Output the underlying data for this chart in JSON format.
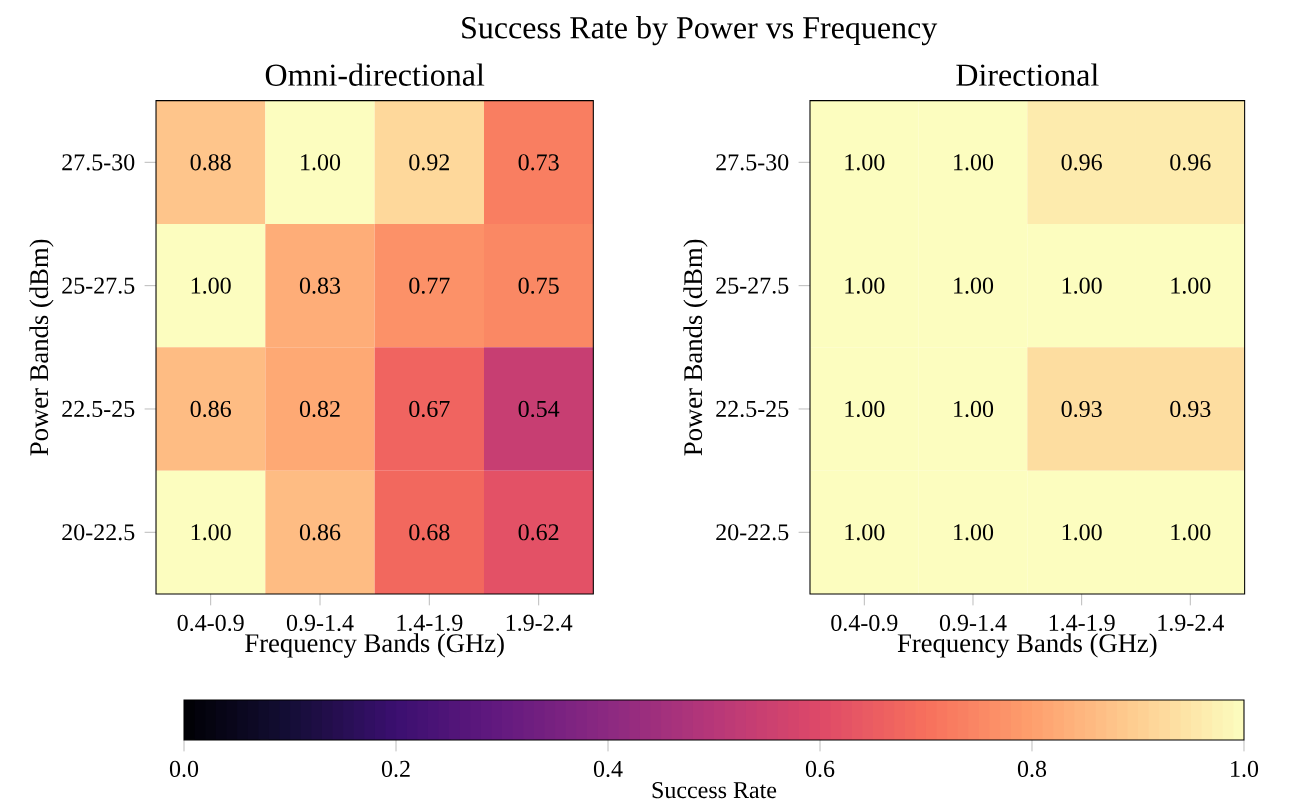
{
  "chart_data": [
    {
      "type": "heatmap",
      "title": "Omni-directional",
      "annotations": [
        "Success Rate by Power vs Frequency"
      ],
      "xlabel": "Frequency Bands (GHz)",
      "ylabel": "Power Bands (dBm)",
      "categories": [
        "0.4-0.9",
        "0.9-1.4",
        "1.4-1.9",
        "1.9-2.4"
      ],
      "y_categories": [
        "27.5-30",
        "25-27.5",
        "22.5-25",
        "20-22.5"
      ],
      "cells": [
        [
          0.88,
          1.0,
          0.92,
          0.73
        ],
        [
          1.0,
          0.83,
          0.77,
          0.75
        ],
        [
          0.86,
          0.82,
          0.67,
          0.54
        ],
        [
          1.0,
          0.86,
          0.68,
          0.62
        ]
      ],
      "cell_labels": [
        [
          "0.88",
          "1.00",
          "0.92",
          "0.73"
        ],
        [
          "1.00",
          "0.83",
          "0.77",
          "0.75"
        ],
        [
          "0.86",
          "0.82",
          "0.67",
          "0.54"
        ],
        [
          "1.00",
          "0.86",
          "0.68",
          "0.62"
        ]
      ]
    },
    {
      "type": "heatmap",
      "title": "Directional",
      "xlabel": "Frequency Bands (GHz)",
      "ylabel": "Power Bands (dBm)",
      "categories": [
        "0.4-0.9",
        "0.9-1.4",
        "1.4-1.9",
        "1.9-2.4"
      ],
      "y_categories": [
        "27.5-30",
        "25-27.5",
        "22.5-25",
        "20-22.5"
      ],
      "cells": [
        [
          1.0,
          1.0,
          0.96,
          0.96
        ],
        [
          1.0,
          1.0,
          1.0,
          1.0
        ],
        [
          1.0,
          1.0,
          0.93,
          0.93
        ],
        [
          1.0,
          1.0,
          1.0,
          1.0
        ]
      ],
      "cell_labels": [
        [
          "1.00",
          "1.00",
          "0.96",
          "0.96"
        ],
        [
          "1.00",
          "1.00",
          "1.00",
          "1.00"
        ],
        [
          "1.00",
          "1.00",
          "0.93",
          "0.93"
        ],
        [
          "1.00",
          "1.00",
          "1.00",
          "1.00"
        ]
      ],
      "clabel": "Success Rate",
      "clim": [
        0,
        1
      ],
      "cticks": [
        {
          "value": 0,
          "label": "0.0"
        },
        {
          "value": 0.2,
          "label": "0.2"
        },
        {
          "value": 0.4,
          "label": "0.4"
        },
        {
          "value": 0.6,
          "label": "0.6"
        },
        {
          "value": 0.8,
          "label": "0.8"
        },
        {
          "value": 1,
          "label": "1.0"
        }
      ]
    }
  ]
}
